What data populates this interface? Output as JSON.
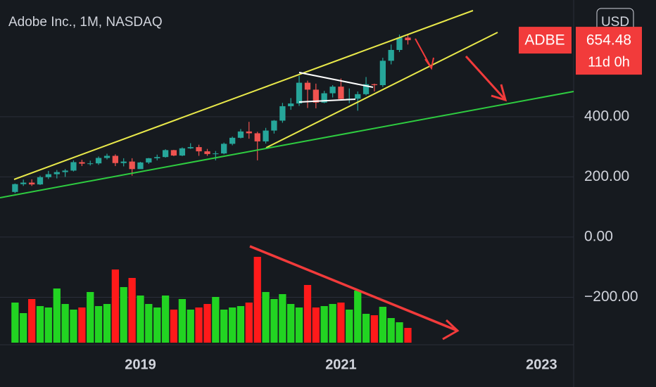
{
  "chart_data": {
    "type": "candlestick",
    "title": "Adobe Inc., 1M, NASDAQ",
    "currency": "USD",
    "symbol": "ADBE",
    "last_price": 654.48,
    "countdown": "11d 0h",
    "x": [
      2017.75,
      2017.833,
      2017.917,
      2018,
      2018.083,
      2018.167,
      2018.25,
      2018.333,
      2018.417,
      2018.5,
      2018.583,
      2018.667,
      2018.75,
      2018.833,
      2018.917,
      2019,
      2019.083,
      2019.167,
      2019.25,
      2019.333,
      2019.417,
      2019.5,
      2019.583,
      2019.667,
      2019.75,
      2019.833,
      2019.917,
      2020,
      2020.083,
      2020.167,
      2020.25,
      2020.333,
      2020.417,
      2020.5,
      2020.583,
      2020.667,
      2020.75,
      2020.833,
      2020.917,
      2021,
      2021.083,
      2021.167,
      2021.25,
      2021.333,
      2021.417,
      2021.5,
      2021.583,
      2021.667
    ],
    "open": [
      150,
      176,
      181,
      175,
      199,
      209,
      216,
      221,
      249,
      244,
      245,
      263,
      270,
      246,
      251,
      226,
      248,
      262,
      266,
      289,
      271,
      295,
      299,
      285,
      276,
      278,
      310,
      330,
      351,
      345,
      318,
      354,
      387,
      435,
      444,
      513,
      490,
      447,
      478,
      500,
      459,
      460,
      475,
      508,
      505,
      586,
      622,
      663
    ],
    "high": [
      178,
      191,
      192,
      204,
      220,
      223,
      226,
      255,
      257,
      254,
      268,
      277,
      275,
      262,
      262,
      250,
      263,
      274,
      292,
      290,
      298,
      312,
      307,
      293,
      286,
      314,
      334,
      359,
      383,
      350,
      363,
      389,
      446,
      462,
      536,
      520,
      510,
      486,
      505,
      527,
      494,
      484,
      532,
      510,
      596,
      640,
      673,
      673
    ],
    "low": [
      146,
      170,
      170,
      173,
      193,
      195,
      200,
      218,
      236,
      238,
      240,
      258,
      236,
      235,
      204,
      228,
      243,
      255,
      264,
      269,
      269,
      293,
      270,
      270,
      255,
      275,
      305,
      328,
      327,
      255,
      311,
      344,
      380,
      423,
      436,
      429,
      428,
      445,
      464,
      454,
      445,
      420,
      471,
      484,
      499,
      574,
      615,
      640
    ],
    "close": [
      176,
      181,
      175,
      199,
      209,
      216,
      221,
      249,
      244,
      245,
      263,
      270,
      246,
      251,
      226,
      248,
      262,
      266,
      289,
      271,
      295,
      299,
      285,
      276,
      278,
      310,
      330,
      351,
      345,
      318,
      354,
      387,
      435,
      444,
      513,
      490,
      447,
      478,
      500,
      459,
      460,
      475,
      508,
      505,
      586,
      622,
      663,
      654.48
    ],
    "volume": [
      57,
      42,
      62,
      52,
      50,
      77,
      55,
      47,
      50,
      72,
      52,
      55,
      104,
      79,
      92,
      67,
      55,
      50,
      67,
      47,
      62,
      47,
      50,
      55,
      65,
      47,
      50,
      52,
      57,
      122,
      72,
      62,
      69,
      55,
      50,
      82,
      50,
      52,
      55,
      57,
      47,
      74,
      41,
      39,
      51,
      35,
      29,
      21
    ],
    "up_color": "#26a69a",
    "down_color": "#ef5350",
    "volume_up_color": "#22d422",
    "volume_down_color": "#ff1a1a",
    "xlim": [
      2017.6,
      2023.32
    ],
    "xticks": [
      2019,
      2021,
      2023
    ],
    "ylim": [
      -358,
      788
    ],
    "yticks": [
      {
        "value": 400,
        "label": "400.00"
      },
      {
        "value": 200,
        "label": "200.00"
      },
      {
        "value": 0,
        "label": "0.00"
      },
      {
        "value": -200,
        "label": "−200.00"
      }
    ],
    "grid": true
  }
}
